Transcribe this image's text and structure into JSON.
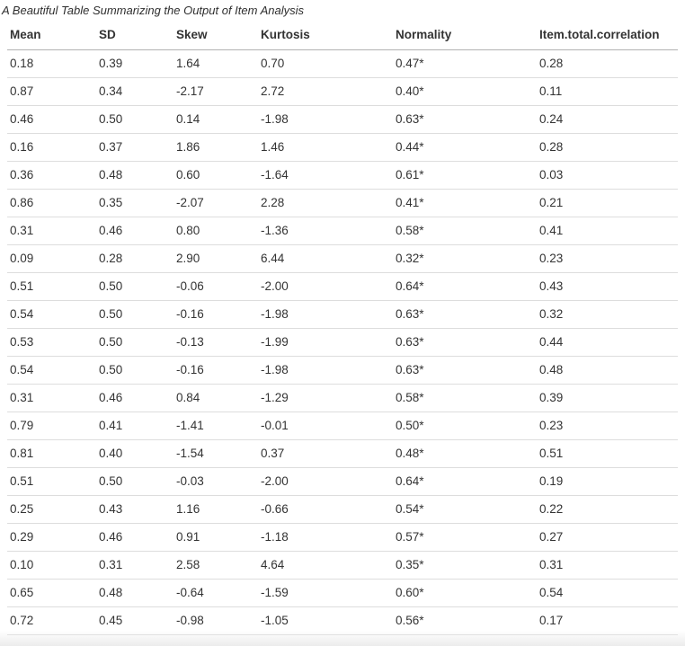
{
  "title": "A Beautiful Table Summarizing the Output of Item Analysis",
  "chart_data": {
    "type": "table",
    "title": "A Beautiful Table Summarizing the Output of Item Analysis",
    "columns": [
      "Mean",
      "SD",
      "Skew",
      "Kurtosis",
      "Normality",
      "Item.total.correlation"
    ],
    "rows": [
      [
        "0.18",
        "0.39",
        "1.64",
        "0.70",
        "0.47*",
        "0.28"
      ],
      [
        "0.87",
        "0.34",
        "-2.17",
        "2.72",
        "0.40*",
        "0.11"
      ],
      [
        "0.46",
        "0.50",
        "0.14",
        "-1.98",
        "0.63*",
        "0.24"
      ],
      [
        "0.16",
        "0.37",
        "1.86",
        "1.46",
        "0.44*",
        "0.28"
      ],
      [
        "0.36",
        "0.48",
        "0.60",
        "-1.64",
        "0.61*",
        "0.03"
      ],
      [
        "0.86",
        "0.35",
        "-2.07",
        "2.28",
        "0.41*",
        "0.21"
      ],
      [
        "0.31",
        "0.46",
        "0.80",
        "-1.36",
        "0.58*",
        "0.41"
      ],
      [
        "0.09",
        "0.28",
        "2.90",
        "6.44",
        "0.32*",
        "0.23"
      ],
      [
        "0.51",
        "0.50",
        "-0.06",
        "-2.00",
        "0.64*",
        "0.43"
      ],
      [
        "0.54",
        "0.50",
        "-0.16",
        "-1.98",
        "0.63*",
        "0.32"
      ],
      [
        "0.53",
        "0.50",
        "-0.13",
        "-1.99",
        "0.63*",
        "0.44"
      ],
      [
        "0.54",
        "0.50",
        "-0.16",
        "-1.98",
        "0.63*",
        "0.48"
      ],
      [
        "0.31",
        "0.46",
        "0.84",
        "-1.29",
        "0.58*",
        "0.39"
      ],
      [
        "0.79",
        "0.41",
        "-1.41",
        "-0.01",
        "0.50*",
        "0.23"
      ],
      [
        "0.81",
        "0.40",
        "-1.54",
        "0.37",
        "0.48*",
        "0.51"
      ],
      [
        "0.51",
        "0.50",
        "-0.03",
        "-2.00",
        "0.64*",
        "0.19"
      ],
      [
        "0.25",
        "0.43",
        "1.16",
        "-0.66",
        "0.54*",
        "0.22"
      ],
      [
        "0.29",
        "0.46",
        "0.91",
        "-1.18",
        "0.57*",
        "0.27"
      ],
      [
        "0.10",
        "0.31",
        "2.58",
        "4.64",
        "0.35*",
        "0.31"
      ],
      [
        "0.65",
        "0.48",
        "-0.64",
        "-1.59",
        "0.60*",
        "0.54"
      ],
      [
        "0.72",
        "0.45",
        "-0.98",
        "-1.05",
        "0.56*",
        "0.17"
      ]
    ],
    "layout": {
      "header_position": "top",
      "grid": "horizontal-rules-only",
      "legend": "none"
    }
  },
  "colors": {
    "background": "#ffffff",
    "text": "#333333",
    "header_rule": "#b2b2b2",
    "row_rule": "#dddddd",
    "bottom_fade": "#ececec"
  }
}
